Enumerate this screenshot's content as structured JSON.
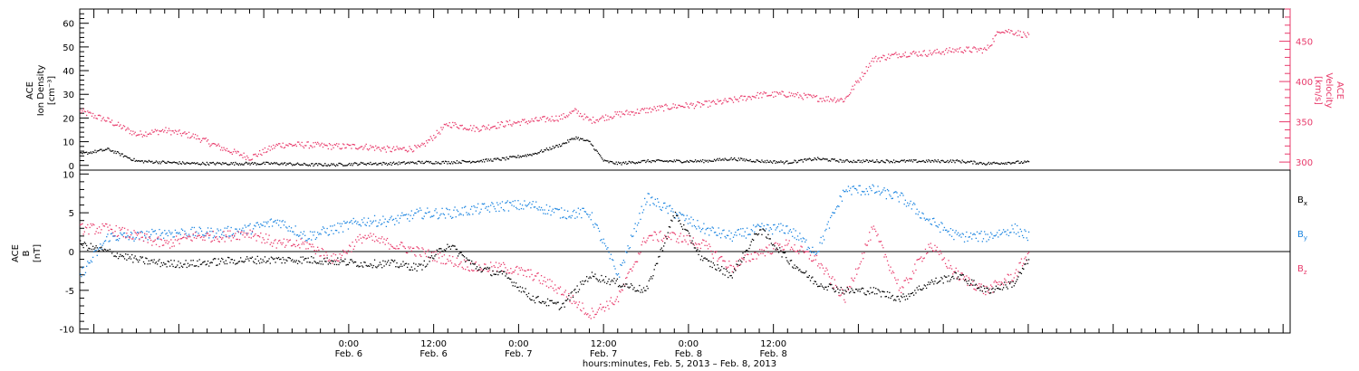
{
  "chart_data": [
    {
      "type": "scatter",
      "panel": "top",
      "ylabel_lines": [
        "ACE",
        "Ion Density",
        "[cm⁻³]"
      ],
      "ylim": [
        -2,
        66
      ],
      "yticks": [
        0,
        10,
        20,
        30,
        40,
        50,
        60
      ],
      "ylabel_right_lines": [
        "ACE",
        "Velocity",
        "[km/s]"
      ],
      "ylim_right": [
        290,
        490
      ],
      "yticks_right": [
        300,
        350,
        400,
        450
      ],
      "colors": {
        "density": "#000000",
        "velocity": "#e8396a"
      },
      "series": [
        {
          "axis": "left",
          "color": "#000000",
          "t": [
            0,
            4,
            8,
            12,
            16,
            20,
            24,
            28,
            32,
            36,
            40,
            44,
            48,
            52,
            56,
            60,
            64,
            66,
            68,
            70,
            72,
            74,
            76,
            80,
            84,
            88,
            92,
            96,
            100,
            104,
            108,
            112,
            116,
            120,
            124,
            128,
            132,
            134
          ],
          "values": [
            5,
            7,
            2,
            1.5,
            1,
            1,
            1,
            1,
            0.5,
            0.5,
            1,
            1,
            1.5,
            1.5,
            2,
            3,
            5,
            7,
            9,
            12,
            10,
            2,
            1,
            2,
            2,
            2,
            3,
            2,
            1.5,
            3,
            2,
            2,
            2,
            2,
            2,
            1,
            1.5,
            1.5
          ]
        },
        {
          "axis": "right",
          "color": "#e8396a",
          "t": [
            0,
            4,
            8,
            12,
            16,
            20,
            24,
            28,
            32,
            36,
            40,
            44,
            48,
            52,
            56,
            60,
            64,
            68,
            70,
            72,
            76,
            80,
            84,
            88,
            92,
            96,
            100,
            104,
            108,
            112,
            116,
            120,
            124,
            128,
            130,
            132,
            134
          ],
          "values": [
            364,
            352,
            335,
            340,
            333,
            318,
            306,
            322,
            322,
            320,
            320,
            316,
            318,
            348,
            342,
            348,
            352,
            356,
            364,
            352,
            360,
            365,
            370,
            372,
            377,
            384,
            385,
            380,
            378,
            428,
            435,
            436,
            440,
            440,
            465,
            462,
            457
          ]
        }
      ]
    },
    {
      "type": "scatter",
      "panel": "bottom",
      "ylabel_lines": [
        "ACE",
        "B",
        "[nT]"
      ],
      "ylim": [
        -10.5,
        10.5
      ],
      "yticks": [
        -10,
        -5,
        0,
        5,
        10
      ],
      "zero_line": true,
      "legend": "right",
      "series": [
        {
          "name": "Bx",
          "color": "#000000",
          "t": [
            0,
            4,
            8,
            12,
            16,
            20,
            24,
            28,
            32,
            36,
            40,
            44,
            48,
            52,
            56,
            60,
            64,
            68,
            72,
            76,
            80,
            84,
            88,
            92,
            96,
            100,
            104,
            108,
            112,
            116,
            120,
            124,
            128,
            132,
            134
          ],
          "values": [
            1,
            0,
            -1,
            -1.5,
            -1.5,
            -1.2,
            -1,
            -1,
            -1,
            -1.2,
            -1.5,
            -1.5,
            -2,
            1,
            -2,
            -3,
            -6,
            -7,
            -3,
            -4,
            -5,
            5,
            -1,
            -3,
            3,
            -1,
            -4,
            -5,
            -5,
            -6,
            -4,
            -3,
            -5,
            -4,
            -1
          ]
        },
        {
          "name": "By",
          "color": "#1a84e0",
          "t": [
            0,
            4,
            8,
            12,
            16,
            20,
            24,
            28,
            32,
            36,
            40,
            44,
            48,
            52,
            56,
            60,
            64,
            68,
            72,
            76,
            80,
            84,
            88,
            92,
            96,
            100,
            104,
            108,
            112,
            116,
            120,
            124,
            128,
            132,
            134
          ],
          "values": [
            -3,
            2,
            2,
            2.5,
            2.5,
            2.5,
            3,
            4,
            2,
            3,
            4,
            4,
            5,
            5,
            5.5,
            6,
            6,
            5,
            5,
            -3,
            7,
            5,
            3,
            2,
            3,
            3,
            0,
            8,
            8,
            7,
            4,
            2,
            2,
            3,
            2
          ]
        },
        {
          "name": "Bz",
          "color": "#e8396a",
          "t": [
            0,
            4,
            8,
            12,
            16,
            20,
            24,
            28,
            32,
            36,
            40,
            44,
            48,
            52,
            56,
            60,
            64,
            68,
            72,
            76,
            80,
            84,
            88,
            92,
            96,
            100,
            104,
            108,
            112,
            116,
            120,
            124,
            128,
            132,
            134
          ],
          "values": [
            3,
            3,
            2,
            1,
            2,
            2,
            2.5,
            1,
            1,
            -1,
            2,
            1,
            0,
            -1,
            -2,
            -2,
            -3,
            -5,
            -8,
            -6,
            2,
            2,
            1,
            -2,
            0,
            1,
            -1,
            -6,
            3,
            -5,
            1,
            -3,
            -5,
            -3,
            0
          ]
        }
      ],
      "legend_labels": [
        "B",
        "B",
        "B"
      ],
      "legend_subscripts": [
        "x",
        "y",
        "z"
      ]
    }
  ],
  "time_axis": {
    "start_hours": -14,
    "end_hours": 157,
    "major_ticks": [
      {
        "hours": 24,
        "time": "0:00",
        "date": "Feb. 6"
      },
      {
        "hours": 36,
        "time": "12:00",
        "date": "Feb. 6"
      },
      {
        "hours": 48,
        "time": "0:00",
        "date": "Feb. 7"
      },
      {
        "hours": 60,
        "time": "12:00",
        "date": "Feb. 7"
      },
      {
        "hours": 72,
        "time": "0:00",
        "date": "Feb. 8"
      },
      {
        "hours": 84,
        "time": "12:00",
        "date": "Feb. 8"
      }
    ],
    "xlabel": "hours:minutes, Feb.  5, 2013 – Feb.  8, 2013"
  }
}
